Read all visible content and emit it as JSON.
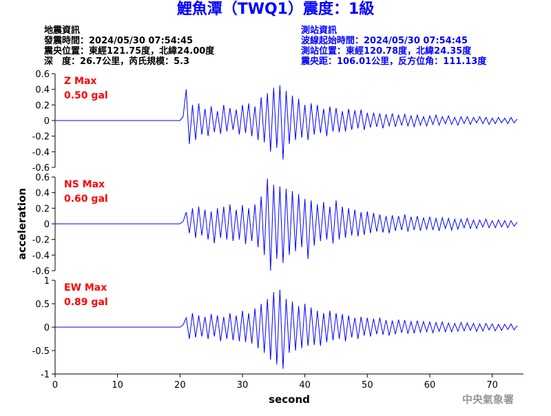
{
  "header": {
    "title": "鯉魚潭（TWQ1）震度：1級",
    "event": [
      "地震資訊",
      "發震時間：2024/05/30 07:54:45",
      "震央位置：東經121.75度，北緯24.00度",
      "深　度：26.7公里，芮氏規模：5.3"
    ],
    "station": [
      "測站資訊",
      "波線起始時間：2024/05/30 07:54:45",
      "測站位置：東經120.78度，北緯24.35度",
      "震央距：106.01公里，反方位角：111.13度"
    ],
    "footer": "中央氣象署"
  },
  "chart_data": [
    {
      "type": "line",
      "annotations": [
        "Z Max",
        "0.50 gal"
      ],
      "x": [
        0,
        20,
        20.5,
        21,
        21.5,
        22,
        22.5,
        23,
        23.5,
        24,
        24.5,
        25,
        25.5,
        26,
        26.5,
        27,
        27.5,
        28,
        28.5,
        29,
        29.5,
        30,
        30.5,
        31,
        31.5,
        32,
        32.5,
        33,
        33.5,
        34,
        34.5,
        35,
        35.5,
        36,
        36.5,
        37,
        37.5,
        38,
        38.5,
        39,
        39.5,
        40,
        40.5,
        41,
        41.5,
        42,
        42.5,
        43,
        43.5,
        44,
        44.5,
        45,
        45.5,
        46,
        46.5,
        47,
        47.5,
        48,
        48.5,
        49,
        49.5,
        50,
        50.5,
        51,
        51.5,
        52,
        52.5,
        53,
        53.5,
        54,
        54.5,
        55,
        55.5,
        56,
        56.5,
        57,
        57.5,
        58,
        58.5,
        59,
        59.5,
        60,
        60.5,
        61,
        61.5,
        62,
        62.5,
        63,
        63.5,
        64,
        64.5,
        65,
        65.5,
        66,
        66.5,
        67,
        67.5,
        68,
        68.5,
        69,
        69.5,
        70,
        70.5,
        71,
        71.5,
        72,
        72.5,
        73,
        73.5,
        74
      ],
      "series": [
        {
          "color": "#0000ff",
          "values": [
            0,
            0,
            0.05,
            0.4,
            -0.3,
            0.2,
            -0.25,
            0.22,
            -0.18,
            0.15,
            -0.2,
            0.18,
            -0.15,
            0.12,
            -0.17,
            0.2,
            -0.14,
            0.16,
            -0.12,
            0.14,
            -0.18,
            0.2,
            -0.16,
            0.22,
            -0.2,
            0.18,
            -0.25,
            0.3,
            -0.28,
            0.35,
            -0.4,
            0.42,
            -0.35,
            0.45,
            -0.5,
            0.38,
            -0.3,
            0.32,
            -0.25,
            0.28,
            -0.22,
            0.2,
            -0.25,
            0.22,
            -0.18,
            0.2,
            -0.16,
            0.15,
            -0.2,
            0.18,
            -0.14,
            0.16,
            -0.15,
            0.12,
            -0.14,
            0.15,
            -0.12,
            0.13,
            -0.1,
            0.14,
            -0.12,
            0.1,
            -0.09,
            0.1,
            -0.08,
            0.09,
            -0.1,
            0.08,
            -0.07,
            0.09,
            -0.08,
            0.07,
            -0.06,
            0.08,
            -0.07,
            0.06,
            -0.08,
            0.07,
            -0.06,
            0.05,
            -0.07,
            0.06,
            -0.05,
            0.07,
            -0.06,
            0.05,
            -0.04,
            0.06,
            -0.05,
            0.04,
            -0.06,
            0.05,
            -0.04,
            0.05,
            -0.05,
            0.04,
            -0.03,
            0.05,
            -0.04,
            0.04,
            -0.05,
            0.03,
            -0.04,
            0.04,
            -0.03,
            0.03,
            -0.04,
            0.04,
            -0.03,
            0.02
          ]
        }
      ],
      "xlim": [
        0,
        75
      ],
      "ylim": [
        -0.6,
        0.6
      ],
      "yticks": [
        -0.6,
        -0.4,
        -0.2,
        0,
        0.2,
        0.4,
        0.6
      ]
    },
    {
      "type": "line",
      "annotations": [
        "NS Max",
        "0.60 gal"
      ],
      "ylabel": "acceleration",
      "x": [
        0,
        20,
        20.5,
        21,
        21.5,
        22,
        22.5,
        23,
        23.5,
        24,
        24.5,
        25,
        25.5,
        26,
        26.5,
        27,
        27.5,
        28,
        28.5,
        29,
        29.5,
        30,
        30.5,
        31,
        31.5,
        32,
        32.5,
        33,
        33.5,
        34,
        34.5,
        35,
        35.5,
        36,
        36.5,
        37,
        37.5,
        38,
        38.5,
        39,
        39.5,
        40,
        40.5,
        41,
        41.5,
        42,
        42.5,
        43,
        43.5,
        44,
        44.5,
        45,
        45.5,
        46,
        46.5,
        47,
        47.5,
        48,
        48.5,
        49,
        49.5,
        50,
        50.5,
        51,
        51.5,
        52,
        52.5,
        53,
        53.5,
        54,
        54.5,
        55,
        55.5,
        56,
        56.5,
        57,
        57.5,
        58,
        58.5,
        59,
        59.5,
        60,
        60.5,
        61,
        61.5,
        62,
        62.5,
        63,
        63.5,
        64,
        64.5,
        65,
        65.5,
        66,
        66.5,
        67,
        67.5,
        68,
        68.5,
        69,
        69.5,
        70,
        70.5,
        71,
        71.5,
        72,
        72.5,
        73,
        73.5,
        74
      ],
      "series": [
        {
          "color": "#0000ff",
          "values": [
            0,
            0,
            0.03,
            0.15,
            -0.12,
            0.2,
            -0.18,
            0.22,
            -0.15,
            0.18,
            -0.2,
            0.16,
            -0.25,
            0.2,
            -0.18,
            0.22,
            -0.2,
            0.25,
            -0.22,
            0.18,
            -0.2,
            0.24,
            -0.26,
            0.2,
            -0.22,
            0.25,
            -0.3,
            0.35,
            -0.4,
            0.58,
            -0.6,
            0.5,
            -0.45,
            0.48,
            -0.5,
            0.45,
            -0.4,
            0.42,
            -0.35,
            0.38,
            -0.3,
            0.32,
            -0.45,
            0.3,
            -0.28,
            0.25,
            -0.22,
            0.28,
            -0.2,
            0.22,
            -0.25,
            0.3,
            -0.2,
            0.22,
            -0.18,
            0.2,
            -0.15,
            0.18,
            -0.16,
            0.15,
            -0.14,
            0.16,
            -0.12,
            0.14,
            -0.1,
            0.12,
            -0.11,
            0.1,
            -0.12,
            0.11,
            -0.09,
            0.1,
            -0.08,
            0.12,
            -0.1,
            0.09,
            -0.08,
            0.1,
            -0.09,
            0.08,
            -0.07,
            0.09,
            -0.08,
            0.07,
            -0.09,
            0.08,
            -0.06,
            0.07,
            -0.08,
            0.06,
            -0.07,
            0.06,
            -0.05,
            0.07,
            -0.06,
            0.05,
            -0.06,
            0.05,
            -0.04,
            0.06,
            -0.05,
            0.04,
            -0.05,
            0.05,
            -0.04,
            0.04,
            -0.05,
            0.04,
            -0.03,
            0.02
          ]
        }
      ],
      "xlim": [
        0,
        75
      ],
      "ylim": [
        -0.6,
        0.6
      ],
      "yticks": [
        -0.6,
        -0.4,
        -0.2,
        0,
        0.2,
        0.4,
        0.6
      ]
    },
    {
      "type": "line",
      "annotations": [
        "EW Max",
        "0.89 gal"
      ],
      "xlabel": "second",
      "x": [
        0,
        20,
        20.5,
        21,
        21.5,
        22,
        22.5,
        23,
        23.5,
        24,
        24.5,
        25,
        25.5,
        26,
        26.5,
        27,
        27.5,
        28,
        28.5,
        29,
        29.5,
        30,
        30.5,
        31,
        31.5,
        32,
        32.5,
        33,
        33.5,
        34,
        34.5,
        35,
        35.5,
        36,
        36.5,
        37,
        37.5,
        38,
        38.5,
        39,
        39.5,
        40,
        40.5,
        41,
        41.5,
        42,
        42.5,
        43,
        43.5,
        44,
        44.5,
        45,
        45.5,
        46,
        46.5,
        47,
        47.5,
        48,
        48.5,
        49,
        49.5,
        50,
        50.5,
        51,
        51.5,
        52,
        52.5,
        53,
        53.5,
        54,
        54.5,
        55,
        55.5,
        56,
        56.5,
        57,
        57.5,
        58,
        58.5,
        59,
        59.5,
        60,
        60.5,
        61,
        61.5,
        62,
        62.5,
        63,
        63.5,
        64,
        64.5,
        65,
        65.5,
        66,
        66.5,
        67,
        67.5,
        68,
        68.5,
        69,
        69.5,
        70,
        70.5,
        71,
        71.5,
        72,
        72.5,
        73,
        73.5,
        74
      ],
      "series": [
        {
          "color": "#0000ff",
          "values": [
            0,
            0,
            0.05,
            0.2,
            -0.25,
            0.3,
            -0.22,
            0.25,
            -0.2,
            0.22,
            -0.25,
            0.28,
            -0.2,
            0.25,
            -0.3,
            0.22,
            -0.25,
            0.3,
            -0.28,
            0.25,
            -0.3,
            0.35,
            -0.32,
            0.3,
            -0.35,
            0.4,
            -0.45,
            0.5,
            -0.55,
            0.6,
            -0.7,
            0.75,
            -0.8,
            0.8,
            -0.89,
            0.6,
            -0.55,
            0.55,
            -0.5,
            0.45,
            -0.45,
            0.5,
            -0.4,
            0.42,
            -0.38,
            0.35,
            -0.4,
            0.3,
            -0.32,
            0.35,
            -0.28,
            0.3,
            -0.25,
            0.28,
            -0.3,
            0.25,
            -0.22,
            0.2,
            -0.25,
            0.22,
            -0.18,
            0.2,
            -0.2,
            0.18,
            -0.15,
            0.2,
            -0.16,
            0.15,
            -0.18,
            0.14,
            -0.15,
            0.16,
            -0.12,
            0.15,
            -0.14,
            0.12,
            -0.13,
            0.14,
            -0.11,
            0.12,
            -0.1,
            0.11,
            -0.12,
            0.1,
            -0.09,
            0.11,
            -0.1,
            0.09,
            -0.1,
            0.08,
            -0.09,
            0.1,
            -0.08,
            0.09,
            -0.07,
            0.08,
            -0.09,
            0.07,
            -0.08,
            0.08,
            -0.06,
            0.07,
            -0.08,
            0.06,
            -0.07,
            0.06,
            -0.05,
            0.07,
            -0.06,
            0.03
          ]
        }
      ],
      "xlim": [
        0,
        75
      ],
      "ylim": [
        -1,
        1
      ],
      "yticks": [
        -1,
        -0.5,
        0,
        0.5,
        1
      ],
      "xticks": [
        0,
        10,
        20,
        30,
        40,
        50,
        60,
        70
      ]
    }
  ]
}
